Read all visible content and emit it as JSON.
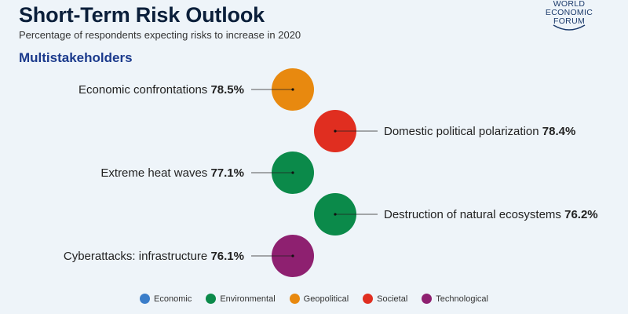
{
  "header": {
    "title": "Short-Term Risk Outlook",
    "subtitle": "Percentage of respondents expecting risks to increase in 2020",
    "section": "Multistakeholders"
  },
  "logo": {
    "line1": "WORLD",
    "line2": "ECONOMIC",
    "line3": "FORUM"
  },
  "chart_data": {
    "type": "scatter",
    "title": "Short-Term Risk Outlook",
    "subtitle": "Percentage of respondents expecting risks to increase in 2020",
    "items": [
      {
        "name": "Economic confrontations",
        "value": "78.5%",
        "category": "Geopolitical",
        "side": "left"
      },
      {
        "name": "Domestic political polarization",
        "value": "78.4%",
        "category": "Societal",
        "side": "right"
      },
      {
        "name": "Extreme heat waves",
        "value": "77.1%",
        "category": "Environmental",
        "side": "left"
      },
      {
        "name": "Destruction of natural ecosystems",
        "value": "76.2%",
        "category": "Environmental",
        "side": "right"
      },
      {
        "name": "Cyberattacks: infrastructure",
        "value": "76.1%",
        "category": "Technological",
        "side": "left"
      }
    ],
    "legend_position": "bottom"
  },
  "legend": [
    {
      "label": "Economic",
      "color": "#3a7dc9"
    },
    {
      "label": "Environmental",
      "color": "#0b8a4a"
    },
    {
      "label": "Geopolitical",
      "color": "#e8890f"
    },
    {
      "label": "Societal",
      "color": "#e02e20"
    },
    {
      "label": "Technological",
      "color": "#8e2070"
    }
  ]
}
